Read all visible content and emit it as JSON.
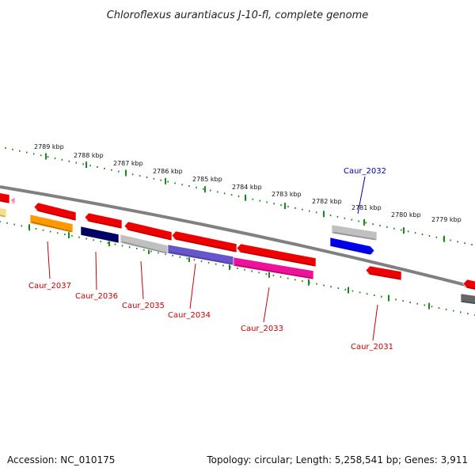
{
  "title": "Chloroflexus aurantiacus J-10-fl, complete genome",
  "footer": {
    "accession": "Accession: NC_010175",
    "topology": "Topology: circular; Length: 5,258,541 bp; Genes: 3,911"
  },
  "colors": {
    "backbone": "#808080",
    "ticks": "#1a8a1a",
    "label_default": "#cc0000",
    "label_highlight": "#0000aa"
  },
  "kbp_labels": [
    "2789 kbp",
    "2788 kbp",
    "2787 kbp",
    "2786 kbp",
    "2785 kbp",
    "2784 kbp",
    "2783 kbp",
    "2782 kbp",
    "2781 kbp",
    "2780 kbp",
    "2779 kbp"
  ],
  "gene_labels": [
    {
      "id": "lbl-2037",
      "text": "Caur_2037",
      "color": "#cc0000"
    },
    {
      "id": "lbl-2036",
      "text": "Caur_2036",
      "color": "#cc0000"
    },
    {
      "id": "lbl-2035",
      "text": "Caur_2035",
      "color": "#cc0000"
    },
    {
      "id": "lbl-2034",
      "text": "Caur_2034",
      "color": "#cc0000"
    },
    {
      "id": "lbl-2033",
      "text": "Caur_2033",
      "color": "#cc0000"
    },
    {
      "id": "lbl-2032",
      "text": "Caur_2032",
      "color": "#0000aa"
    },
    {
      "id": "lbl-2031",
      "text": "Caur_2031",
      "color": "#cc0000"
    }
  ],
  "gene_colors": {
    "red": "#ee0000",
    "orange": "#ff9900",
    "navy": "#000066",
    "lightgray": "#c0c0c0",
    "slateblue": "#6655cc",
    "magenta": "#ee1199",
    "blue": "#0000ee",
    "darkgray": "#666666",
    "pink": "#ff88bb",
    "yellow": "#f4e08a"
  }
}
